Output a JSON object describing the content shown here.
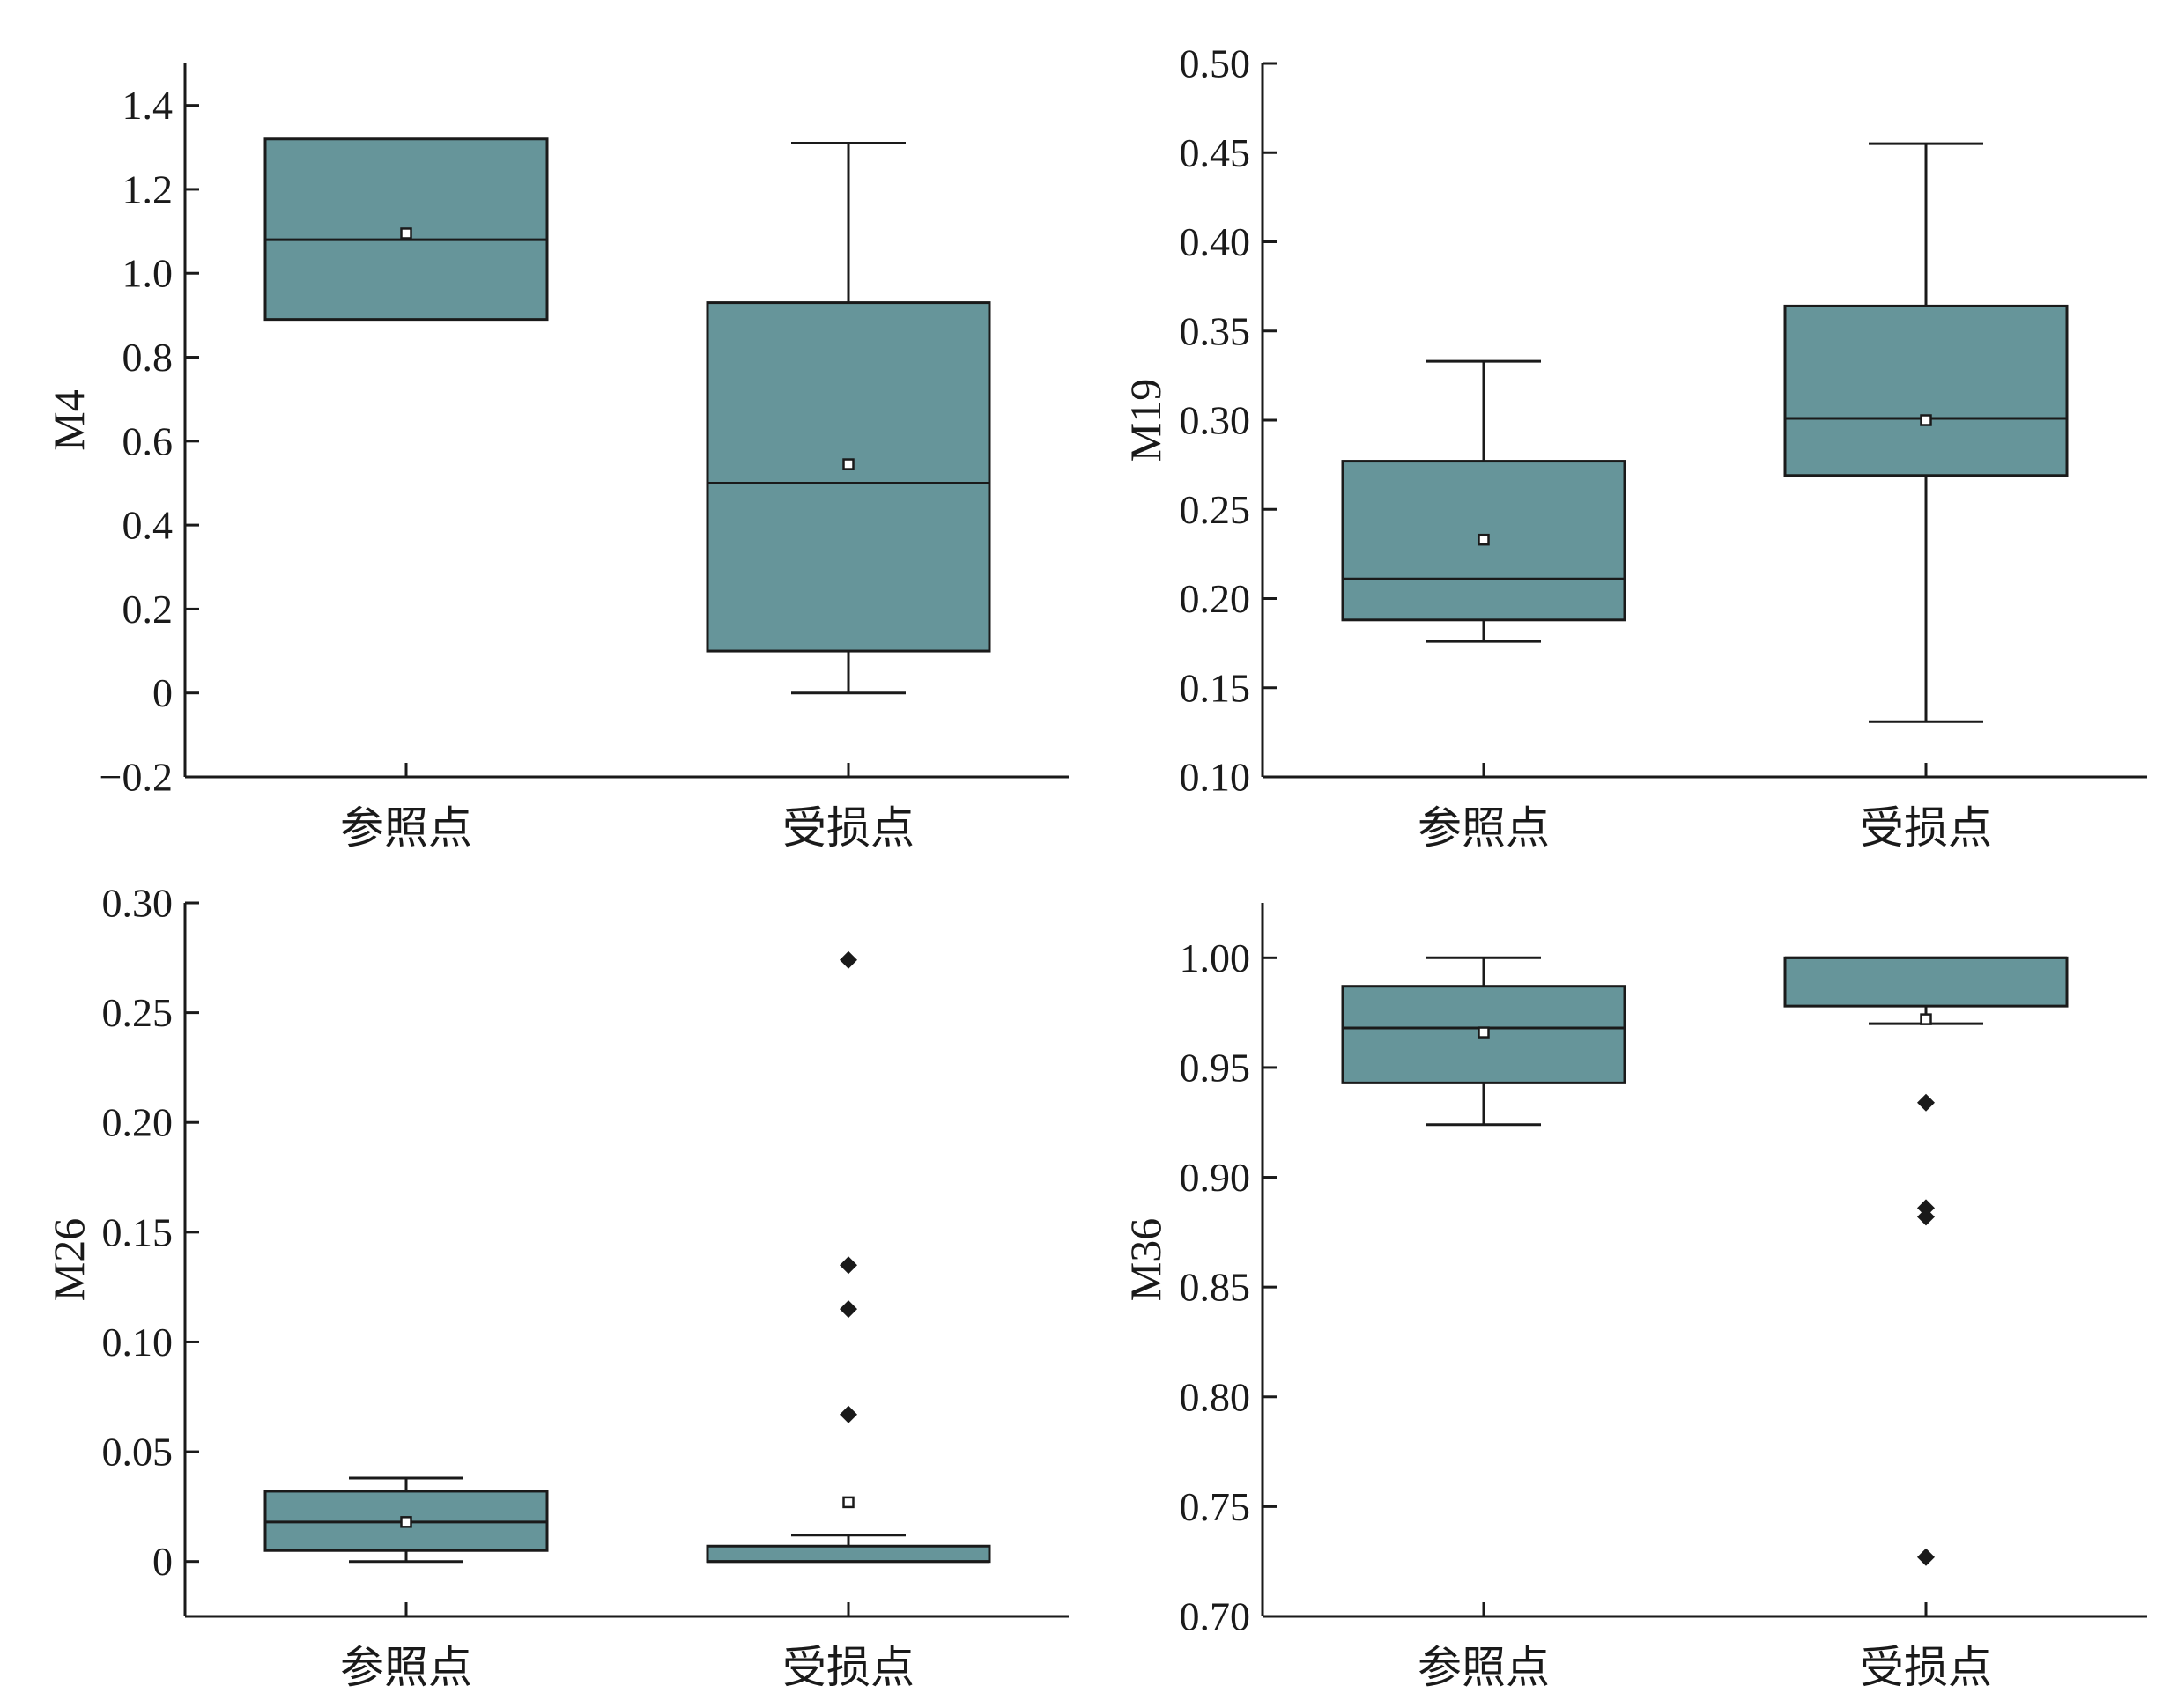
{
  "colors": {
    "box_fill": "#66959a",
    "stroke": "#1a1a1a",
    "background": "#ffffff"
  },
  "chart_data": [
    {
      "type": "box",
      "ylabel": "M4",
      "categories": [
        "参照点",
        "受损点"
      ],
      "ylim": [
        -0.2,
        1.5
      ],
      "yticks": [
        -0.2,
        0,
        0.2,
        0.4,
        0.6,
        0.8,
        1.0,
        1.2,
        1.4
      ],
      "ytick_labels": [
        "−0.2",
        "0",
        "0.2",
        "0.4",
        "0.6",
        "0.8",
        "1.0",
        "1.2",
        "1.4"
      ],
      "boxes": [
        {
          "category": "参照点",
          "whisker_low": 0.89,
          "q1": 0.89,
          "median": 1.08,
          "q3": 1.32,
          "whisker_high": 1.32,
          "mean": 1.095,
          "outliers": []
        },
        {
          "category": "受损点",
          "whisker_low": 0.0,
          "q1": 0.1,
          "median": 0.5,
          "q3": 0.93,
          "whisker_high": 1.31,
          "mean": 0.545,
          "outliers": []
        }
      ]
    },
    {
      "type": "box",
      "ylabel": "M19",
      "categories": [
        "参照点",
        "受损点"
      ],
      "ylim": [
        0.1,
        0.5
      ],
      "yticks": [
        0.1,
        0.15,
        0.2,
        0.25,
        0.3,
        0.35,
        0.4,
        0.45,
        0.5
      ],
      "ytick_labels": [
        "0.10",
        "0.15",
        "0.20",
        "0.25",
        "0.30",
        "0.35",
        "0.40",
        "0.45",
        "0.50"
      ],
      "boxes": [
        {
          "category": "参照点",
          "whisker_low": 0.176,
          "q1": 0.188,
          "median": 0.211,
          "q3": 0.277,
          "whisker_high": 0.333,
          "mean": 0.233,
          "outliers": []
        },
        {
          "category": "受损点",
          "whisker_low": 0.131,
          "q1": 0.269,
          "median": 0.301,
          "q3": 0.364,
          "whisker_high": 0.455,
          "mean": 0.3,
          "outliers": []
        }
      ]
    },
    {
      "type": "box",
      "ylabel": "M26",
      "categories": [
        "参照点",
        "受损点"
      ],
      "ylim": [
        -0.025,
        0.3
      ],
      "yticks": [
        0,
        0.05,
        0.1,
        0.15,
        0.2,
        0.25,
        0.3
      ],
      "ytick_labels": [
        "0",
        "0.05",
        "0.10",
        "0.15",
        "0.20",
        "0.25",
        "0.30"
      ],
      "boxes": [
        {
          "category": "参照点",
          "whisker_low": 0.0,
          "q1": 0.005,
          "median": 0.018,
          "q3": 0.032,
          "whisker_high": 0.038,
          "mean": 0.018,
          "outliers": []
        },
        {
          "category": "受损点",
          "whisker_low": 0.0,
          "q1": 0.0,
          "median": 0.0,
          "q3": 0.007,
          "whisker_high": 0.012,
          "mean": 0.027,
          "outliers": [
            0.067,
            0.115,
            0.135,
            0.274
          ]
        }
      ]
    },
    {
      "type": "box",
      "ylabel": "M36",
      "categories": [
        "参照点",
        "受损点"
      ],
      "ylim": [
        0.7,
        1.025
      ],
      "yticks": [
        0.7,
        0.75,
        0.8,
        0.85,
        0.9,
        0.95,
        1.0
      ],
      "ytick_labels": [
        "0.70",
        "0.75",
        "0.80",
        "0.85",
        "0.90",
        "0.95",
        "1.00"
      ],
      "boxes": [
        {
          "category": "参照点",
          "whisker_low": 0.924,
          "q1": 0.943,
          "median": 0.968,
          "q3": 0.987,
          "whisker_high": 1.0,
          "mean": 0.966,
          "outliers": []
        },
        {
          "category": "受损点",
          "whisker_low": 0.97,
          "q1": 0.978,
          "median": 1.0,
          "q3": 1.0,
          "whisker_high": 1.0,
          "mean": 0.972,
          "outliers": [
            0.727,
            0.882,
            0.886,
            0.934
          ]
        }
      ]
    }
  ]
}
